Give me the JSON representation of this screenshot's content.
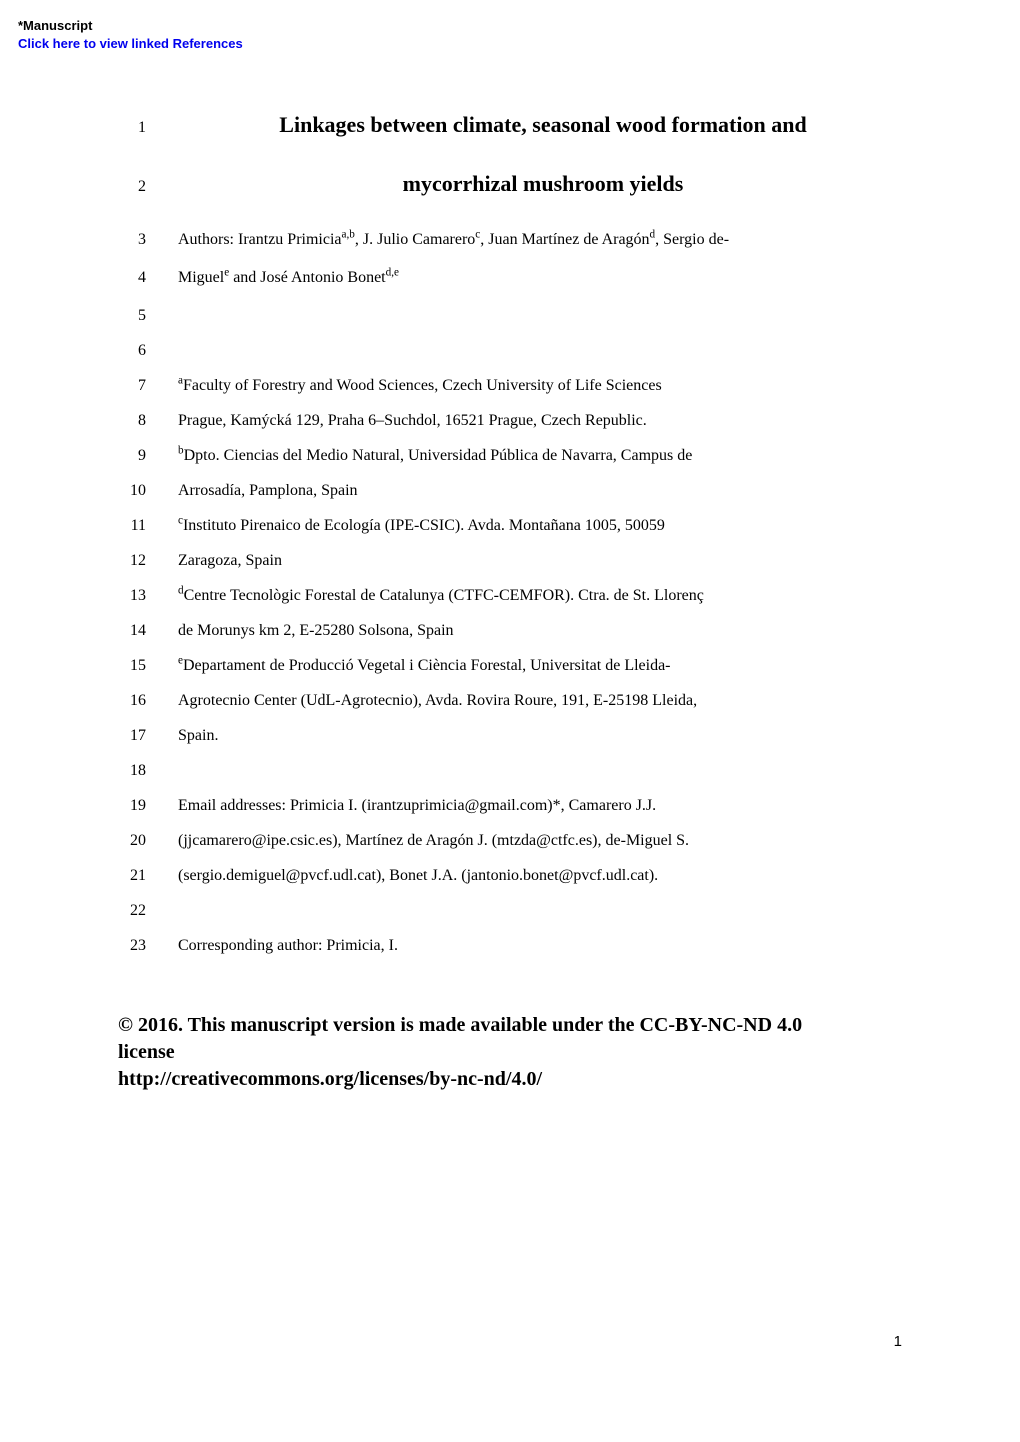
{
  "header": {
    "manuscript_label": "*Manuscript",
    "link_text": "Click here to view linked References"
  },
  "colors": {
    "background": "#ffffff",
    "text": "#000000",
    "link": "#0000ee"
  },
  "typography": {
    "body_font": "Times New Roman",
    "header_font": "Arial",
    "title_fontsize": 22,
    "body_fontsize": 16,
    "linenum_fontsize": 16,
    "license_fontsize": 20,
    "header_fontsize": 13,
    "pagenum_fontsize": 15
  },
  "title": {
    "line1": "Linkages between climate, seasonal wood formation and",
    "line2": "mycorrhizal mushroom yields"
  },
  "authors_prefix": "Authors: Irantzu Primicia",
  "authors_sup1": "a,b",
  "authors_mid1": ", J. Julio Camarero",
  "authors_sup2": "c",
  "authors_mid2": ", Juan Martínez de Aragón",
  "authors_sup3": "d",
  "authors_tail": ", Sergio de-",
  "authors_line2_pre": "Miguel",
  "authors_line2_sup1": "e",
  "authors_line2_mid": " and José Antonio Bonet",
  "authors_line2_sup2": "d,e",
  "affiliations": {
    "a_sup": "a",
    "a_text": "Faculty of Forestry and Wood Sciences, Czech University of Life Sciences",
    "a_line2": "Prague, Kamýcká 129, Praha 6–Suchdol, 16521 Prague, Czech Republic.",
    "b_sup": "b",
    "b_text": "Dpto. Ciencias del Medio Natural, Universidad Pública de Navarra, Campus de",
    "b_line2": "Arrosadía, Pamplona, Spain",
    "c_sup": "c",
    "c_text": "Instituto Pirenaico de Ecología (IPE-CSIC). Avda. Montañana 1005, 50059",
    "c_line2": "Zaragoza, Spain",
    "d_sup": "d",
    "d_text": "Centre Tecnològic Forestal de Catalunya (CTFC-CEMFOR). Ctra. de St. Llorenç",
    "d_line2": "de Morunys km 2, E-25280 Solsona, Spain",
    "e_sup": "e",
    "e_text": "Departament de Producció Vegetal i Ciència Forestal, Universitat de Lleida-",
    "e_line2": "Agrotecnio Center (UdL-Agrotecnio), Avda. Rovira Roure, 191, E-25198 Lleida,",
    "e_line3": "Spain."
  },
  "emails": {
    "line1": "Email addresses: Primicia I. (irantzuprimicia@gmail.com)*, Camarero J.J.",
    "line2": "(jjcamarero@ipe.csic.es), Martínez de Aragón J. (mtzda@ctfc.es), de-Miguel S.",
    "line3": "(sergio.demiguel@pvcf.udl.cat), Bonet J.A. (jantonio.bonet@pvcf.udl.cat)."
  },
  "corresponding": "Corresponding author: Primicia, I.",
  "license": {
    "line1": "© 2016. This manuscript version is made available under the CC-BY-NC-ND 4.0",
    "line2": "license",
    "url": "http://creativecommons.org/licenses/by-nc-nd/4.0/"
  },
  "line_numbers": {
    "n1": "1",
    "n2": "2",
    "n3": "3",
    "n4": "4",
    "n5": "5",
    "n6": "6",
    "n7": "7",
    "n8": "8",
    "n9": "9",
    "n10": "10",
    "n11": "11",
    "n12": "12",
    "n13": "13",
    "n14": "14",
    "n15": "15",
    "n16": "16",
    "n17": "17",
    "n18": "18",
    "n19": "19",
    "n20": "20",
    "n21": "21",
    "n22": "22",
    "n23": "23"
  },
  "page_number": "1"
}
